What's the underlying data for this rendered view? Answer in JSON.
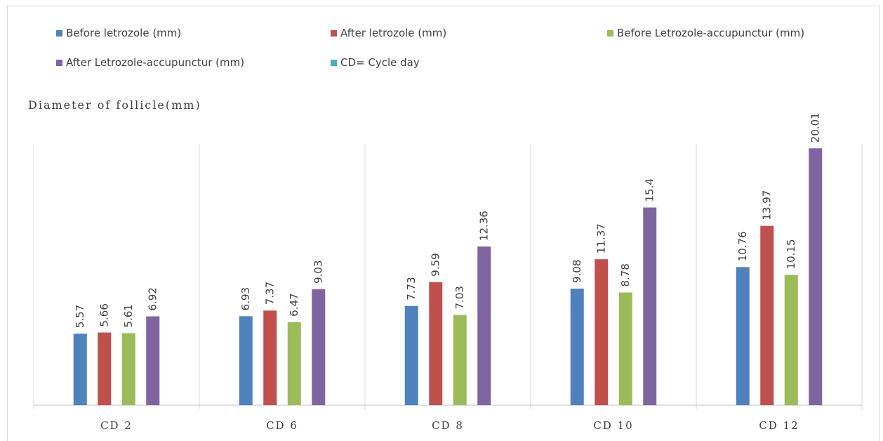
{
  "chart_data": {
    "type": "bar",
    "title": "",
    "ylabel": "Diameter of follicle(mm)",
    "xlabel": "",
    "categories": [
      "CD 2",
      "CD 6",
      "CD 8",
      "CD 10",
      "CD 12"
    ],
    "ylim": [
      0,
      25
    ],
    "grid": "vertical category separators",
    "legend_position": "top",
    "series": [
      {
        "name": "Before letrozole (mm)",
        "color": "#4f81bd",
        "values": [
          5.57,
          6.93,
          7.73,
          9.08,
          10.76
        ]
      },
      {
        "name": "After letrozole (mm)",
        "color": "#c0504d",
        "values": [
          5.66,
          7.37,
          9.59,
          11.37,
          13.97
        ]
      },
      {
        "name": "Before Letrozole-accupunctur (mm)",
        "color": "#9bbb59",
        "values": [
          5.61,
          6.47,
          7.03,
          8.78,
          10.15
        ]
      },
      {
        "name": "After Letrozole-accupunctur (mm)",
        "color": "#8064a2",
        "values": [
          6.92,
          9.03,
          12.36,
          15.4,
          20.01
        ]
      }
    ],
    "value_labels": [
      [
        "5.57",
        "6.93",
        "7.73",
        "9.08",
        "10.76"
      ],
      [
        "5.66",
        "7.37",
        "9.59",
        "11.37",
        "13.97"
      ],
      [
        "5.61",
        "6.47",
        "7.03",
        "8.78",
        "10.15"
      ],
      [
        "6.92",
        "9.03",
        "12.36",
        "15.4",
        "20.01"
      ]
    ],
    "extra_legend": {
      "name": "CD= Cycle day",
      "color": "#4bacc6"
    }
  }
}
